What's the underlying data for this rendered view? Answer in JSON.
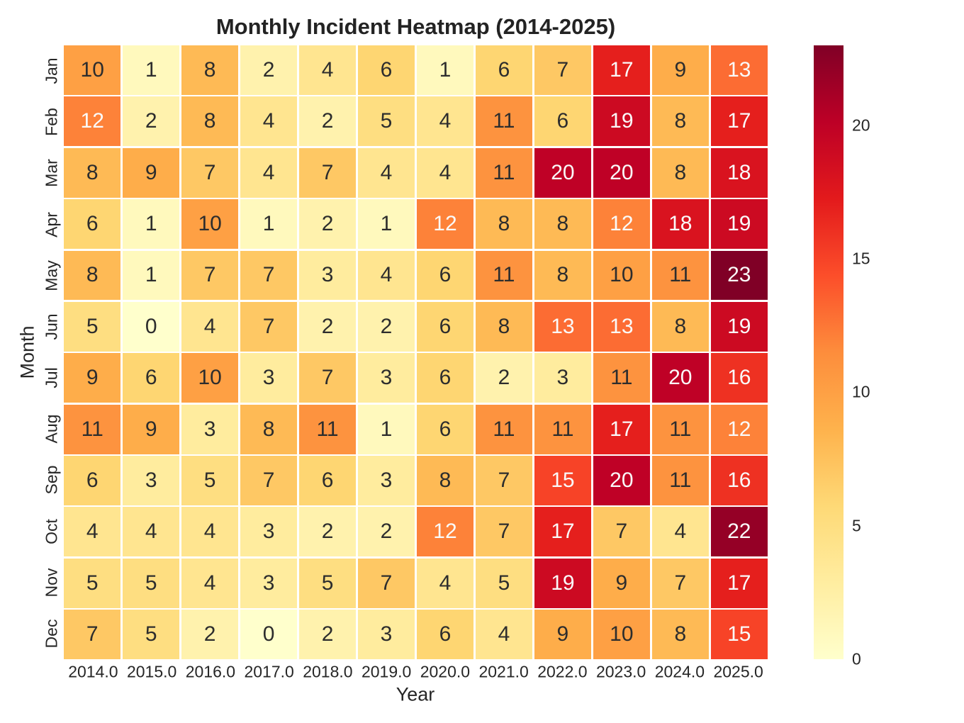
{
  "chart_data": {
    "type": "heatmap",
    "title": "Monthly Incident Heatmap (2014-2025)",
    "xlabel": "Year",
    "ylabel": "Month",
    "x_categories": [
      "2014.0",
      "2015.0",
      "2016.0",
      "2017.0",
      "2018.0",
      "2019.0",
      "2020.0",
      "2021.0",
      "2022.0",
      "2023.0",
      "2024.0",
      "2025.0"
    ],
    "y_categories": [
      "Jan",
      "Feb",
      "Mar",
      "Apr",
      "May",
      "Jun",
      "Jul",
      "Aug",
      "Sep",
      "Oct",
      "Nov",
      "Dec"
    ],
    "values": [
      [
        10,
        1,
        8,
        2,
        4,
        6,
        1,
        6,
        7,
        17,
        9,
        13
      ],
      [
        12,
        2,
        8,
        4,
        2,
        5,
        4,
        11,
        6,
        19,
        8,
        17
      ],
      [
        8,
        9,
        7,
        4,
        7,
        4,
        4,
        11,
        20,
        20,
        8,
        18
      ],
      [
        6,
        1,
        10,
        1,
        2,
        1,
        12,
        8,
        8,
        12,
        18,
        19
      ],
      [
        8,
        1,
        7,
        7,
        3,
        4,
        6,
        11,
        8,
        10,
        11,
        23
      ],
      [
        5,
        0,
        4,
        7,
        2,
        2,
        6,
        8,
        13,
        13,
        8,
        19
      ],
      [
        9,
        6,
        10,
        3,
        7,
        3,
        6,
        2,
        3,
        11,
        20,
        16
      ],
      [
        11,
        9,
        3,
        8,
        11,
        1,
        6,
        11,
        11,
        17,
        11,
        12
      ],
      [
        6,
        3,
        5,
        7,
        6,
        3,
        8,
        7,
        15,
        20,
        11,
        16
      ],
      [
        4,
        4,
        4,
        3,
        2,
        2,
        12,
        7,
        17,
        7,
        4,
        22
      ],
      [
        5,
        5,
        4,
        3,
        5,
        7,
        4,
        5,
        19,
        9,
        7,
        17
      ],
      [
        7,
        5,
        2,
        0,
        2,
        3,
        6,
        4,
        9,
        10,
        8,
        15
      ]
    ],
    "vmin": 0,
    "vmax": 23,
    "annotated": true,
    "colormap": {
      "name": "YlOrRd",
      "stops": [
        "#ffffcc",
        "#ffeda0",
        "#fed976",
        "#feb24c",
        "#fd8d3c",
        "#fc4e2a",
        "#e31a1c",
        "#bd0026",
        "#800026"
      ]
    },
    "annotation_colors": {
      "dark": "#2d2d2d",
      "light": "#fafafa"
    },
    "grid_line_color": "#ffffff",
    "colorbar": {
      "position": "right",
      "ticks": [
        0,
        5,
        10,
        15,
        20
      ]
    },
    "legend": "none",
    "axes_grid": false
  }
}
